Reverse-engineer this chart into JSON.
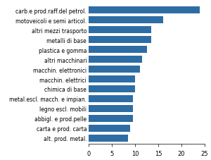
{
  "categories": [
    "carb.e prod.raff.del petrol.",
    "motoveicoli e semi articol.",
    "altri mezzi trasporto",
    "metalli di base",
    "plastica e gomma",
    "altri macchinari",
    "macchin. elettronici",
    "macchin. elettrici",
    "chimica di base",
    "metal.escl. macch. e impian.",
    "legno escl. mobili",
    "abbigl. e prod.pelle",
    "carta e prod. carta",
    "alt. prod. metal."
  ],
  "values": [
    24.0,
    16.0,
    13.5,
    13.5,
    12.5,
    11.5,
    11.0,
    10.0,
    10.0,
    9.5,
    9.5,
    9.5,
    9.0,
    8.5
  ],
  "bar_color": "#2E6DA4",
  "xlim": [
    0,
    25
  ],
  "xticks": [
    0,
    5,
    10,
    15,
    20,
    25
  ],
  "background_color": "#ffffff",
  "label_fontsize": 5.5,
  "tick_fontsize": 6.0,
  "bar_height": 0.72
}
